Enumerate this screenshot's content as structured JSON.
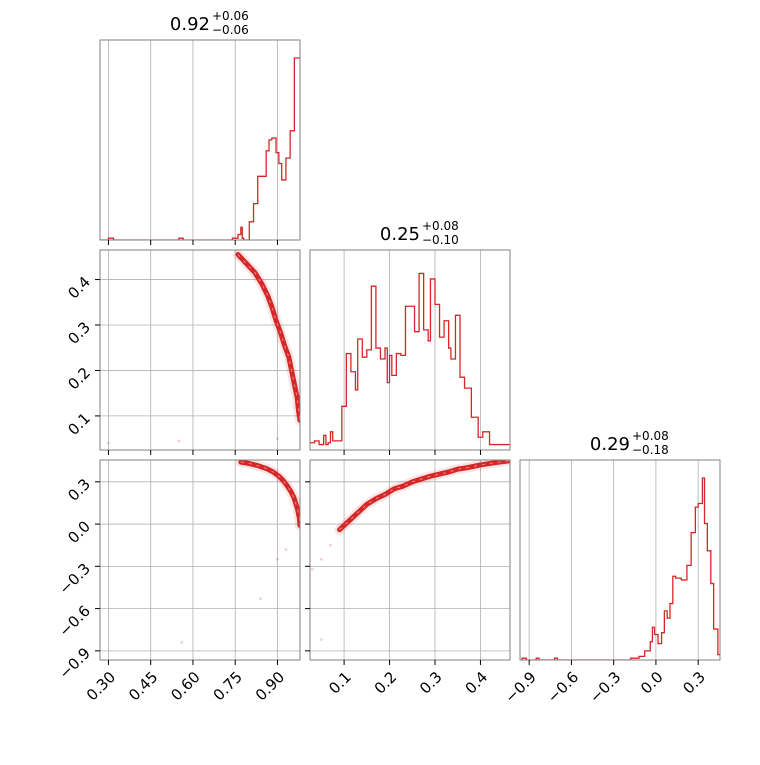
{
  "chart_data": {
    "type": "corner",
    "colors": {
      "line": "#d62728",
      "grid": "#b0b0b0",
      "frame": "#808080"
    },
    "grid": true,
    "titles": [
      {
        "main": "0.92",
        "plus": "+0.06",
        "minus": "−0.06"
      },
      {
        "main": "0.25",
        "plus": "+0.08",
        "minus": "−0.10"
      },
      {
        "main": "0.29",
        "plus": "+0.08",
        "minus": "−0.18"
      }
    ],
    "ranges": {
      "p0": [
        0.27,
        0.98
      ],
      "p1": [
        0.025,
        0.465
      ],
      "p2": [
        -0.965,
        0.455
      ]
    },
    "ticks": {
      "p0": [
        0.3,
        0.45,
        0.6,
        0.75,
        0.9
      ],
      "p1": [
        0.1,
        0.2,
        0.3,
        0.4
      ],
      "p2": [
        -0.9,
        -0.6,
        -0.3,
        0.0,
        0.3
      ]
    },
    "tick_labels": {
      "p0": [
        "0.30",
        "0.45",
        "0.60",
        "0.75",
        "0.90"
      ],
      "p1": [
        "0.1",
        "0.2",
        "0.3",
        "0.4"
      ],
      "p2": [
        "−0.9",
        "−0.6",
        "−0.3",
        "0.0",
        "0.3"
      ]
    },
    "hist_p0": [
      [
        0.27,
        0.0
      ],
      [
        0.3,
        0.01
      ],
      [
        0.318,
        0.0
      ],
      [
        0.55,
        0.01
      ],
      [
        0.565,
        0.0
      ],
      [
        0.74,
        0.01
      ],
      [
        0.76,
        0.03
      ],
      [
        0.77,
        0.07
      ],
      [
        0.775,
        0.01
      ],
      [
        0.78,
        0.0
      ],
      [
        0.8,
        0.1
      ],
      [
        0.815,
        0.2
      ],
      [
        0.83,
        0.35
      ],
      [
        0.845,
        0.35
      ],
      [
        0.86,
        0.49
      ],
      [
        0.87,
        0.55
      ],
      [
        0.88,
        0.56
      ],
      [
        0.895,
        0.48
      ],
      [
        0.905,
        0.42
      ],
      [
        0.915,
        0.33
      ],
      [
        0.93,
        0.45
      ],
      [
        0.945,
        0.6
      ],
      [
        0.96,
        1.0
      ],
      [
        0.98,
        1.0
      ]
    ],
    "hist_p1": [
      [
        0.025,
        0.04
      ],
      [
        0.035,
        0.05
      ],
      [
        0.045,
        0.03
      ],
      [
        0.055,
        0.08
      ],
      [
        0.06,
        0.03
      ],
      [
        0.065,
        0.04
      ],
      [
        0.07,
        0.1
      ],
      [
        0.075,
        0.05
      ],
      [
        0.085,
        0.05
      ],
      [
        0.095,
        0.24
      ],
      [
        0.105,
        0.53
      ],
      [
        0.115,
        0.43
      ],
      [
        0.125,
        0.33
      ],
      [
        0.13,
        0.61
      ],
      [
        0.14,
        0.51
      ],
      [
        0.15,
        0.55
      ],
      [
        0.16,
        0.9
      ],
      [
        0.17,
        0.56
      ],
      [
        0.18,
        0.5
      ],
      [
        0.19,
        0.56
      ],
      [
        0.195,
        0.37
      ],
      [
        0.2,
        0.52
      ],
      [
        0.205,
        0.41
      ],
      [
        0.215,
        0.53
      ],
      [
        0.225,
        0.52
      ],
      [
        0.235,
        0.79
      ],
      [
        0.255,
        0.65
      ],
      [
        0.265,
        0.97
      ],
      [
        0.275,
        0.66
      ],
      [
        0.285,
        0.6
      ],
      [
        0.29,
        0.94
      ],
      [
        0.3,
        0.8
      ],
      [
        0.31,
        0.62
      ],
      [
        0.32,
        0.71
      ],
      [
        0.33,
        0.56
      ],
      [
        0.335,
        0.5
      ],
      [
        0.345,
        0.74
      ],
      [
        0.355,
        0.4
      ],
      [
        0.365,
        0.34
      ],
      [
        0.38,
        0.18
      ],
      [
        0.395,
        0.07
      ],
      [
        0.405,
        0.1
      ],
      [
        0.42,
        0.03
      ],
      [
        0.465,
        0.03
      ]
    ],
    "hist_p2": [
      [
        -0.965,
        0.0
      ],
      [
        -0.95,
        0.01
      ],
      [
        -0.92,
        0.0
      ],
      [
        -0.85,
        0.01
      ],
      [
        -0.83,
        0.0
      ],
      [
        -0.73,
        0.0
      ],
      [
        -0.72,
        0.01
      ],
      [
        -0.7,
        0.0
      ],
      [
        -0.18,
        0.01
      ],
      [
        -0.12,
        0.02
      ],
      [
        -0.08,
        0.05
      ],
      [
        -0.04,
        0.1
      ],
      [
        -0.025,
        0.18
      ],
      [
        -0.01,
        0.14
      ],
      [
        0.0,
        0.14
      ],
      [
        0.015,
        0.09
      ],
      [
        0.04,
        0.15
      ],
      [
        0.06,
        0.27
      ],
      [
        0.08,
        0.23
      ],
      [
        0.1,
        0.31
      ],
      [
        0.12,
        0.46
      ],
      [
        0.14,
        0.45
      ],
      [
        0.16,
        0.45
      ],
      [
        0.18,
        0.44
      ],
      [
        0.2,
        0.44
      ],
      [
        0.22,
        0.52
      ],
      [
        0.25,
        0.7
      ],
      [
        0.265,
        0.7
      ],
      [
        0.28,
        0.84
      ],
      [
        0.3,
        0.86
      ],
      [
        0.33,
        1.0
      ],
      [
        0.345,
        0.75
      ],
      [
        0.365,
        0.6
      ],
      [
        0.39,
        0.42
      ],
      [
        0.41,
        0.17
      ],
      [
        0.44,
        0.03
      ],
      [
        0.455,
        0.03
      ]
    ],
    "curve_p1_vs_p0": [
      [
        0.76,
        0.455
      ],
      [
        0.79,
        0.435
      ],
      [
        0.82,
        0.415
      ],
      [
        0.845,
        0.39
      ],
      [
        0.865,
        0.365
      ],
      [
        0.88,
        0.34
      ],
      [
        0.895,
        0.31
      ],
      [
        0.91,
        0.285
      ],
      [
        0.925,
        0.255
      ],
      [
        0.94,
        0.23
      ],
      [
        0.95,
        0.2
      ],
      [
        0.96,
        0.17
      ],
      [
        0.97,
        0.14
      ],
      [
        0.975,
        0.11
      ],
      [
        0.98,
        0.09
      ]
    ],
    "curve_p2_vs_p0": [
      [
        0.77,
        0.44
      ],
      [
        0.8,
        0.43
      ],
      [
        0.83,
        0.415
      ],
      [
        0.86,
        0.395
      ],
      [
        0.885,
        0.37
      ],
      [
        0.905,
        0.34
      ],
      [
        0.92,
        0.31
      ],
      [
        0.935,
        0.27
      ],
      [
        0.948,
        0.23
      ],
      [
        0.958,
        0.19
      ],
      [
        0.966,
        0.14
      ],
      [
        0.972,
        0.1
      ],
      [
        0.978,
        0.04
      ],
      [
        0.98,
        -0.01
      ]
    ],
    "curve_p2_vs_p1": [
      [
        0.09,
        -0.04
      ],
      [
        0.11,
        0.02
      ],
      [
        0.13,
        0.08
      ],
      [
        0.15,
        0.14
      ],
      [
        0.17,
        0.18
      ],
      [
        0.19,
        0.21
      ],
      [
        0.21,
        0.25
      ],
      [
        0.23,
        0.27
      ],
      [
        0.25,
        0.3
      ],
      [
        0.27,
        0.32
      ],
      [
        0.29,
        0.34
      ],
      [
        0.31,
        0.355
      ],
      [
        0.33,
        0.37
      ],
      [
        0.35,
        0.39
      ],
      [
        0.37,
        0.4
      ],
      [
        0.4,
        0.42
      ],
      [
        0.43,
        0.435
      ],
      [
        0.465,
        0.45
      ]
    ],
    "faint_p1_vs_p0": [
      [
        0.3,
        0.04
      ],
      [
        0.55,
        0.045
      ],
      [
        0.9,
        0.05
      ]
    ],
    "faint_p2_vs_p0": [
      [
        0.56,
        -0.84
      ],
      [
        0.84,
        -0.53
      ],
      [
        0.9,
        -0.25
      ],
      [
        0.93,
        -0.18
      ]
    ],
    "faint_p2_vs_p1": [
      [
        0.05,
        -0.82
      ],
      [
        0.03,
        -0.32
      ],
      [
        0.05,
        -0.25
      ],
      [
        0.07,
        -0.15
      ]
    ]
  }
}
